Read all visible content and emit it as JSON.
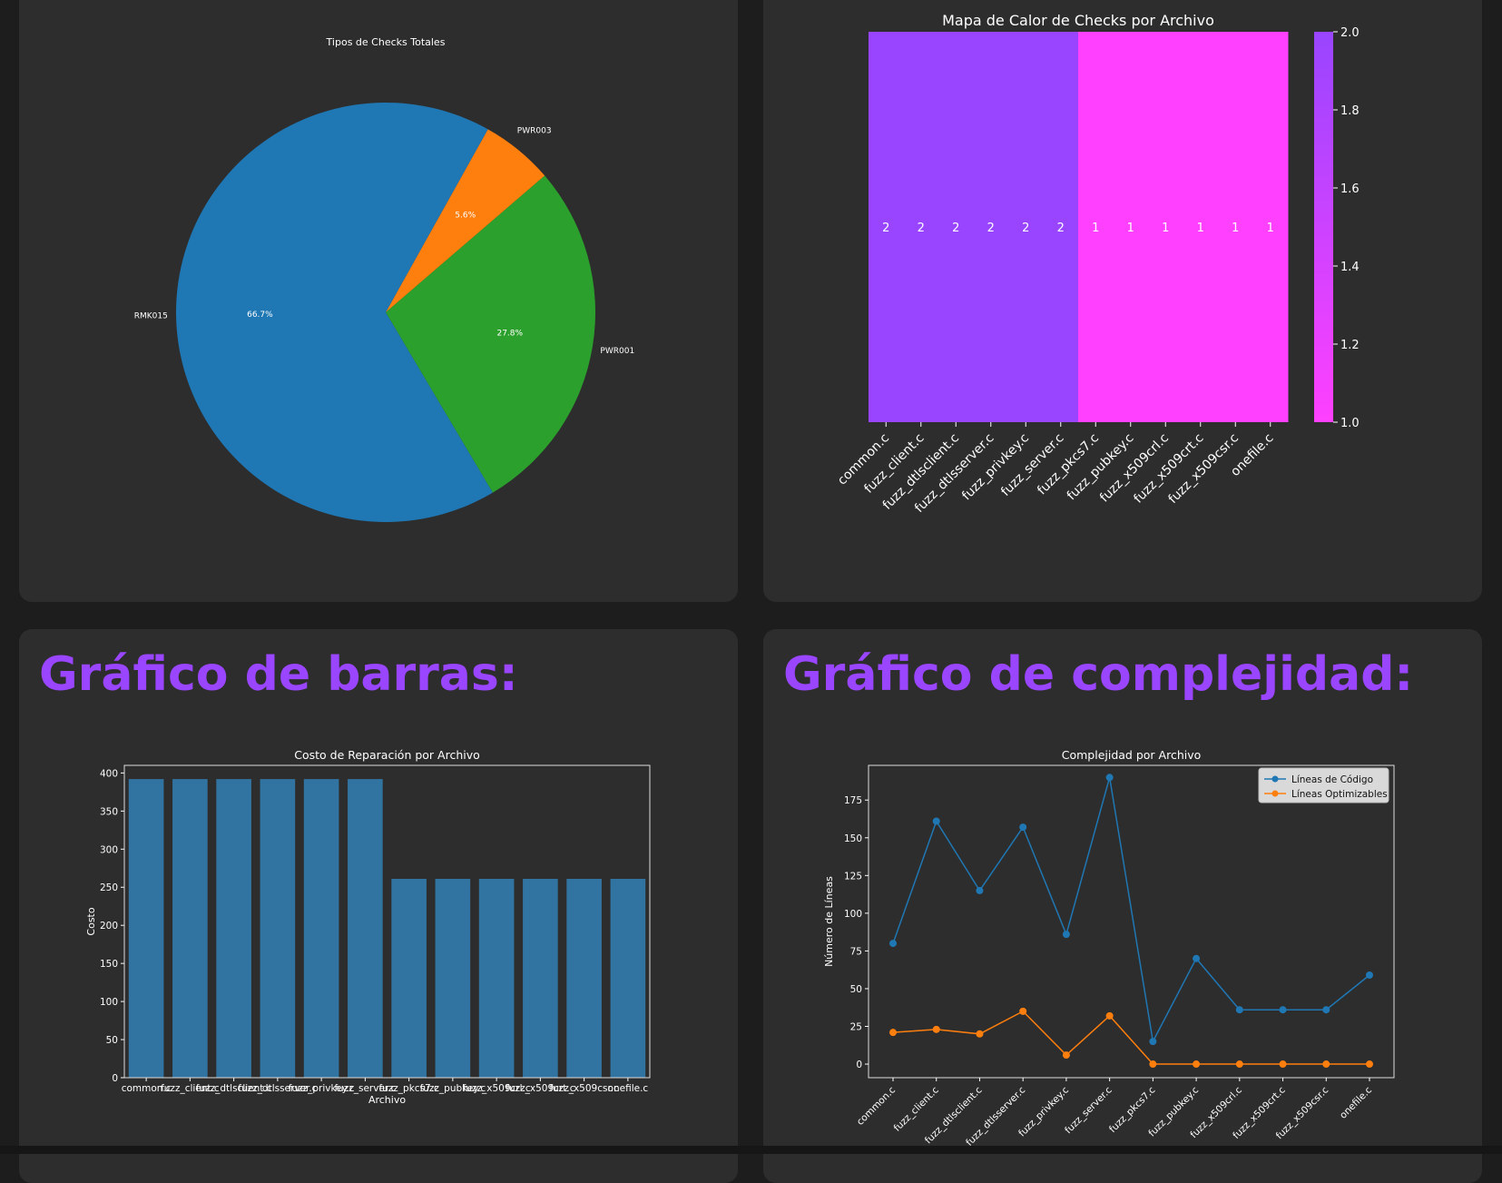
{
  "panels": {
    "bar_heading": "Gráfico de barras:",
    "complexity_heading": "Gráfico de complejidad:"
  },
  "colors": {
    "background": "#1d1d1d",
    "card": "#2d2d2d",
    "heading": "#9a45ff",
    "pie_blue": "#1f77b4",
    "pie_green": "#2ca02c",
    "pie_orange": "#ff7f0e",
    "heat_high": "#9945ff",
    "heat_low": "#ff40ff",
    "bar": "#3274a1",
    "line_blue": "#1f77b4",
    "line_orange": "#ff7f0e"
  },
  "chart_data": [
    {
      "type": "pie",
      "title": "Tipos de Checks Totales",
      "labels": [
        "PWR001",
        "PWR003",
        "RMK015"
      ],
      "values": [
        27.8,
        5.6,
        66.7
      ],
      "value_labels": [
        "27.8%",
        "5.6%",
        "66.7%"
      ]
    },
    {
      "type": "heatmap",
      "title": "Mapa de Calor de Checks por Archivo",
      "x_tick_labels": [
        "common.c",
        "fuzz_client.c",
        "fuzz_dtlsclient.c",
        "fuzz_dtlsserver.c",
        "fuzz_privkey.c",
        "fuzz_server.c",
        "fuzz_pkcs7.c",
        "fuzz_pubkey.c",
        "fuzz_x509crl.c",
        "fuzz_x509crt.c",
        "fuzz_x509csr.c",
        "onefile.c"
      ],
      "values": [
        2,
        2,
        2,
        2,
        2,
        2,
        1,
        1,
        1,
        1,
        1,
        1
      ],
      "colorbar_range": [
        1.0,
        2.0
      ],
      "colorbar_ticks": [
        "1.0",
        "1.2",
        "1.4",
        "1.6",
        "1.8",
        "2.0"
      ]
    },
    {
      "type": "bar",
      "title": "Costo de Reparación por Archivo",
      "xlabel": "Archivo",
      "ylabel": "Costo",
      "categories": [
        "common.c",
        "fuzz_client.c",
        "fuzz_dtlsclient.c",
        "fuzz_dtlsserver.c",
        "fuzz_privkey.c",
        "fuzz_server.c",
        "fuzz_pkcs7.c",
        "fuzz_pubkey.c",
        "fuzz_x509crl.c",
        "fuzz_x509crt.c",
        "fuzz_x509csr.c",
        "onefile.c"
      ],
      "values": [
        392,
        392,
        392,
        392,
        392,
        392,
        261,
        261,
        261,
        261,
        261,
        261
      ],
      "ylim": [
        0,
        410
      ],
      "yticks": [
        0,
        50,
        100,
        150,
        200,
        250,
        300,
        350,
        400
      ]
    },
    {
      "type": "line",
      "title": "Complejidad por Archivo",
      "xlabel": "",
      "ylabel": "Número de Líneas",
      "categories": [
        "common.c",
        "fuzz_client.c",
        "fuzz_dtlsclient.c",
        "fuzz_dtlsserver.c",
        "fuzz_privkey.c",
        "fuzz_server.c",
        "fuzz_pkcs7.c",
        "fuzz_pubkey.c",
        "fuzz_x509crl.c",
        "fuzz_x509crt.c",
        "fuzz_x509csr.c",
        "onefile.c"
      ],
      "series": [
        {
          "name": "Líneas de Código",
          "values": [
            80,
            161,
            115,
            157,
            86,
            190,
            15,
            70,
            36,
            36,
            36,
            59
          ]
        },
        {
          "name": "Líneas Optimizables",
          "values": [
            21,
            23,
            20,
            35,
            6,
            32,
            0,
            0,
            0,
            0,
            0,
            0
          ]
        }
      ],
      "ylim": [
        -9,
        198
      ],
      "yticks": [
        0,
        25,
        50,
        75,
        100,
        125,
        150,
        175
      ],
      "legend": "top-right"
    }
  ]
}
